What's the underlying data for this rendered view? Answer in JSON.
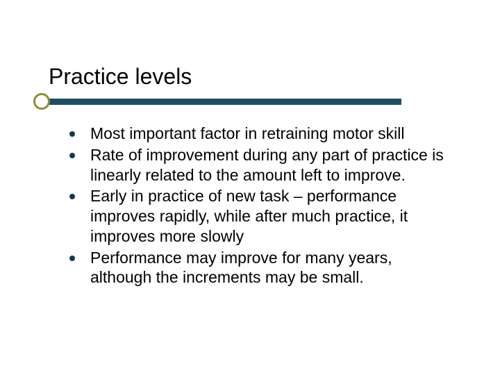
{
  "slide": {
    "title": "Practice levels",
    "accent_color": "#1f4e5f",
    "accent_dark": "#163a46",
    "olive_color": "#8a8f3a",
    "text_color": "#000000",
    "title_fontsize": 32,
    "body_fontsize": 23,
    "bullets": [
      "Most important factor in retraining motor skill",
      "Rate of improvement during  any part of practice is linearly related to the amount left to improve.",
      "Early in practice of new task – performance improves rapidly, while after much practice, it improves more slowly",
      "Performance may improve for many years, although the increments may be small."
    ]
  }
}
